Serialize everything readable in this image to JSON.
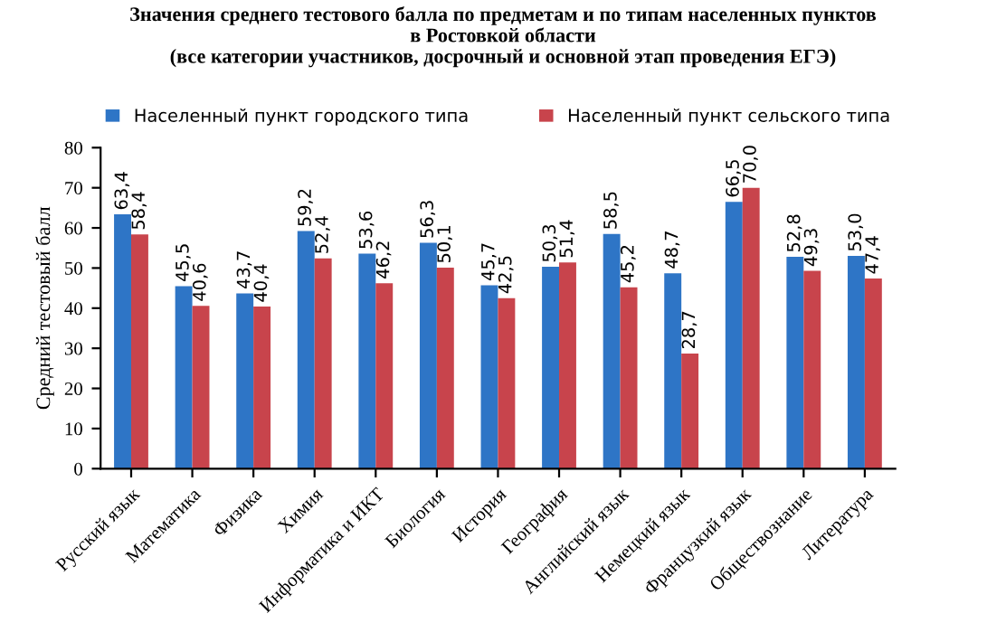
{
  "chart_data": {
    "type": "bar",
    "title": "Значения среднего тестового балла по предметам и по типам населенных пунктов\nв Ростовкой области\n(все категории участников, досрочный и основной этап проведения ЕГЭ)",
    "ylabel": "Средний тестовый балл",
    "categories": [
      "Русский язык",
      "Математика",
      "Физика",
      "Химия",
      "Информатика и ИКТ",
      "Биология",
      "История",
      "География",
      "Английский язык",
      "Немецкий язык",
      "Французкий язык",
      "Обществознание",
      "Литература"
    ],
    "series": [
      {
        "name": "Населенный пункт городского типа",
        "color": "#2e75c6",
        "values": [
          63.4,
          45.5,
          43.7,
          59.2,
          53.6,
          56.3,
          45.7,
          50.3,
          58.5,
          48.7,
          66.5,
          52.8,
          53.0
        ],
        "value_labels": [
          "63,4",
          "45,5",
          "43,7",
          "59,2",
          "53,6",
          "56,3",
          "45,7",
          "50,3",
          "58,5",
          "48,7",
          "66,5",
          "52,8",
          "53,0"
        ]
      },
      {
        "name": "Населенный пункт сельского типа",
        "color": "#c8444c",
        "values": [
          58.4,
          40.6,
          40.4,
          52.4,
          46.2,
          50.1,
          42.5,
          51.4,
          45.2,
          28.7,
          70.0,
          49.3,
          47.4
        ],
        "value_labels": [
          "58,4",
          "40,6",
          "40,4",
          "52,4",
          "46,2",
          "50,1",
          "42,5",
          "51,4",
          "45,2",
          "28,7",
          "70,0",
          "49,3",
          "47,4"
        ]
      }
    ],
    "ylim": [
      0,
      80
    ],
    "yticks": [
      0,
      10,
      20,
      30,
      40,
      50,
      60,
      70,
      80
    ],
    "grid": false,
    "legend": "top"
  }
}
